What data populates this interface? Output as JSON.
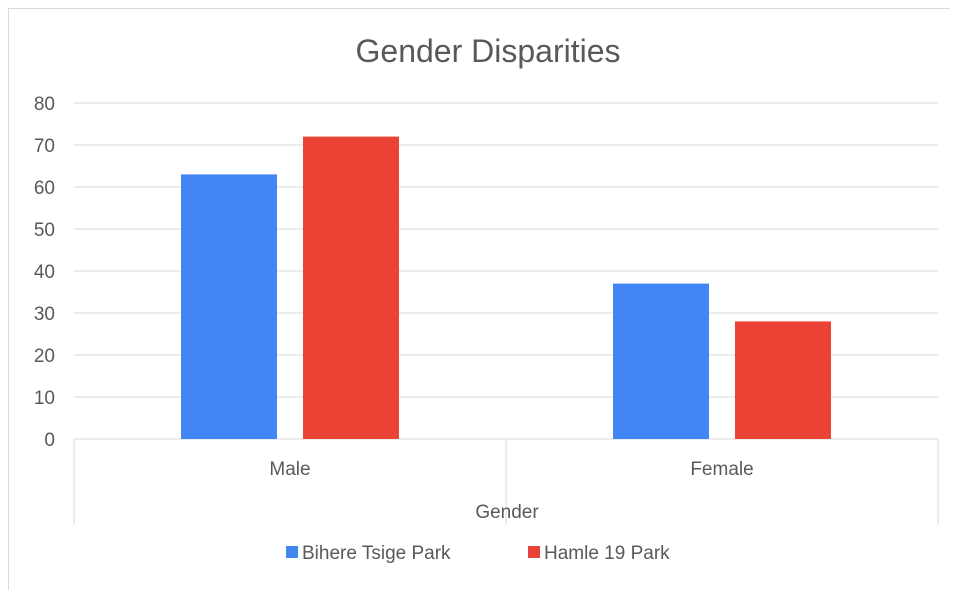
{
  "chart_data": {
    "type": "bar",
    "title": "Gender Disparities",
    "xlabel": "Gender",
    "ylabel": "",
    "categories": [
      "Male",
      "Female"
    ],
    "series": [
      {
        "name": "Bihere Tsige Park",
        "color": "#4285f4",
        "values": [
          63,
          37
        ]
      },
      {
        "name": "Hamle 19 Park",
        "color": "#ea4335",
        "values": [
          72,
          28
        ]
      }
    ],
    "ylim": [
      0,
      80
    ],
    "yticks": [
      0,
      10,
      20,
      30,
      40,
      50,
      60,
      70,
      80
    ],
    "grid": true,
    "legend": "bottom"
  }
}
